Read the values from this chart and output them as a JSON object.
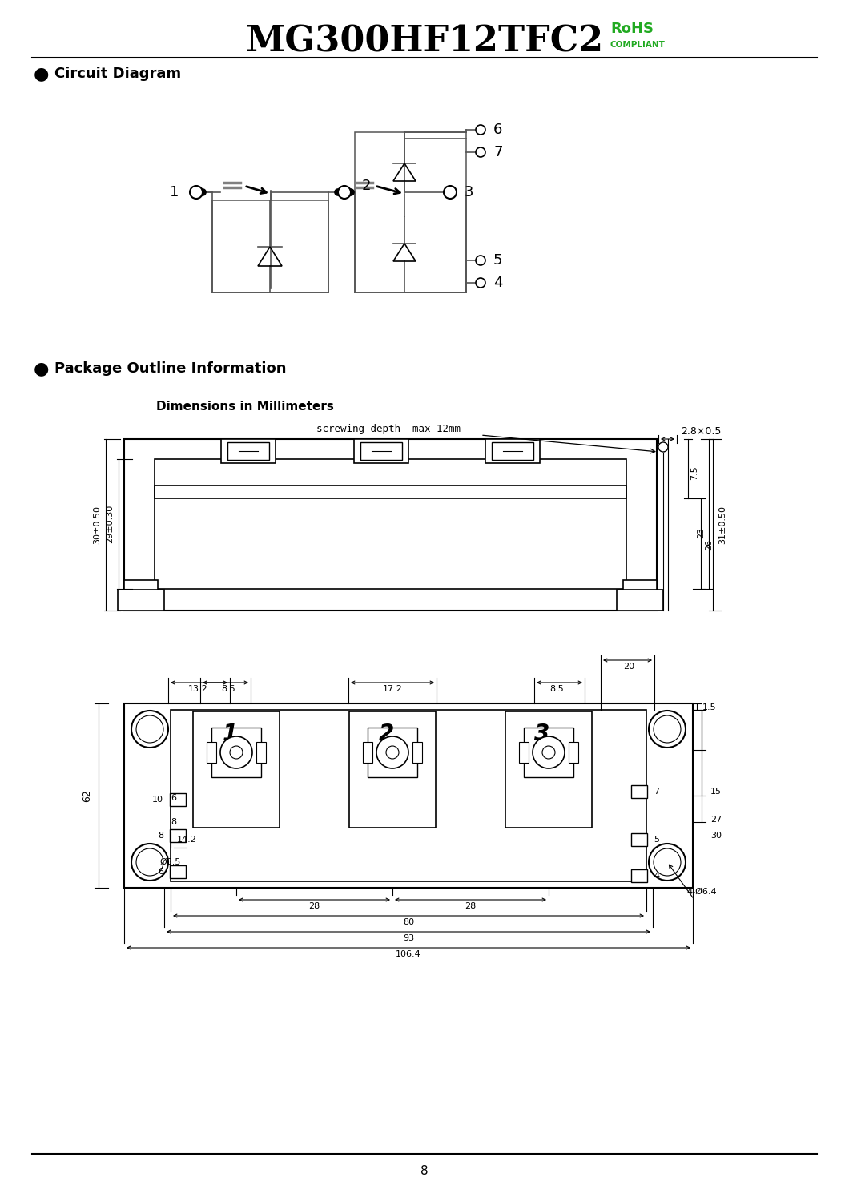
{
  "title": "MG300HF12TFC2",
  "rohs_line1": "RoHS",
  "rohs_line2": "COMPLIANT",
  "section1_title": "Circuit Diagram",
  "section2_title": "Package Outline Information",
  "dim_title": "Dimensions in Millimeters",
  "screwing_text": "screwing depth  max 12mm",
  "dim_28x05": "2.8×0.5",
  "dim_left_label1": "30±0.50",
  "dim_left_label2": "29±0.30",
  "dim_right_label1": "7.5",
  "dim_right_label2": "23",
  "dim_right_label3": "26",
  "dim_right_label4": "31±0.50",
  "dim_62": "62",
  "dim_14_2": "14.2",
  "dim_phi6_5": "Ø6.5",
  "dim_6": "6",
  "dim_8": "8",
  "dim_15": "15",
  "dim_27": "27",
  "dim_30": "30",
  "dim_4phi6_4": "4-Ø6.4",
  "dim_13_2": "13.2",
  "dim_8_5a": "8.5",
  "dim_17_2": "17.2",
  "dim_8_5b": "8.5",
  "dim_20": "20",
  "dim_1_5": "1.5",
  "dim_28a": "28",
  "dim_28b": "28",
  "dim_80": "80",
  "dim_93": "93",
  "dim_106_4": "106.4",
  "page_number": "8",
  "bg_color": "#ffffff",
  "line_color": "#000000",
  "circuit_line_color": "#555555",
  "green_color": "#22aa22"
}
